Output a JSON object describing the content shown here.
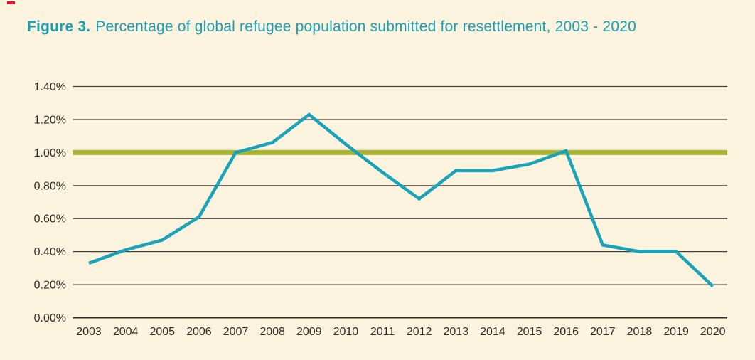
{
  "page": {
    "background_color": "#FCF3DF",
    "corner_mark_color": "#E8112D"
  },
  "title": {
    "figure_label": "Figure 3.",
    "text": "Percentage of global refugee population submitted for resettlement, 2003 - 2020",
    "color": "#199FB4"
  },
  "chart_data": {
    "type": "line",
    "title": "Percentage of global refugee population submitted for resettlement, 2003 - 2020",
    "categories": [
      "2003",
      "2004",
      "2005",
      "2006",
      "2007",
      "2008",
      "2009",
      "2010",
      "2011",
      "2012",
      "2013",
      "2014",
      "2015",
      "2016",
      "2017",
      "2018",
      "2019",
      "2020"
    ],
    "series": [
      {
        "name": "Percentage of global refugee population submitted for resettlement",
        "values": [
          0.33,
          0.41,
          0.47,
          0.61,
          1.0,
          1.06,
          1.23,
          1.05,
          0.88,
          0.72,
          0.89,
          0.89,
          0.93,
          1.01,
          0.44,
          0.4,
          0.4,
          0.19
        ]
      }
    ],
    "unit": "%",
    "ylim": [
      0,
      1.4
    ],
    "ytick_values": [
      0,
      0.2,
      0.4,
      0.6,
      0.8,
      1.0,
      1.2,
      1.4
    ],
    "ytick_labels": [
      "0.00%",
      "0.20%",
      "0.40%",
      "0.60%",
      "0.80%",
      "1.00%",
      "1.20%",
      "1.40%"
    ],
    "xlabel": "",
    "ylabel": "",
    "grid": "horizontal",
    "legend": "none",
    "reference_line": {
      "value": 1.0,
      "color": "#A9B435"
    },
    "line_color": "#19A3B8",
    "gridline_color": "#46403A",
    "axis_color": "#2F2B26",
    "label_color": "#2F2B26"
  }
}
